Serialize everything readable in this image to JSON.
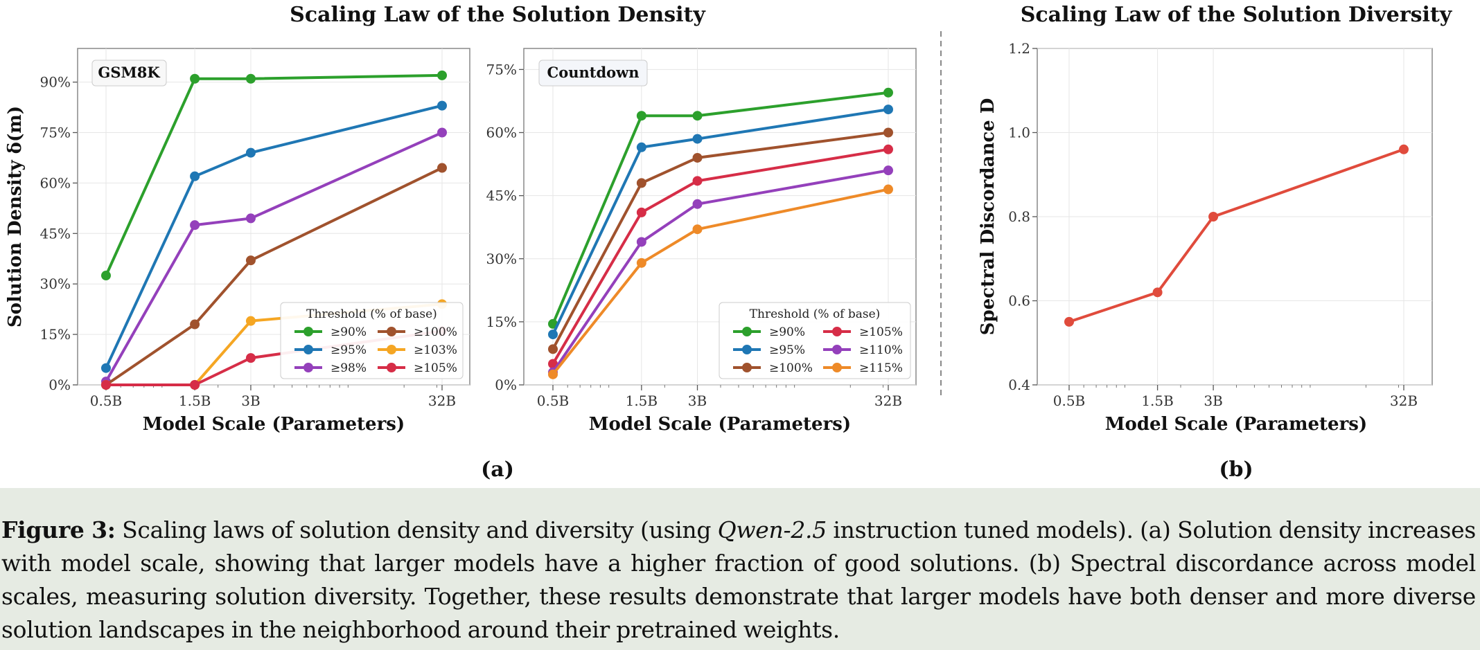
{
  "figure": {
    "title_a": "Scaling Law of the Solution Density",
    "title_b": "Scaling Law of the Solution Diversity",
    "label_a": "(a)",
    "label_b": "(b)"
  },
  "caption": {
    "label": "Figure 3:",
    "text_1": "Scaling laws of solution density and diversity (using ",
    "italic": "Qwen-2.5",
    "text_2": " instruction tuned models). (a) Solution density increases with model scale, showing that larger models have a higher fraction of good solutions. (b) Spectral discordance across model scales, measuring solution diversity. Together, these results demonstrate that larger models have both denser and more diverse solution landscapes in the neighborhood around their pretrained weights."
  },
  "colors": {
    "green": "#2ca02c",
    "blue": "#1f77b4",
    "purple": "#9440bb",
    "brown": "#a0522d",
    "orange": "#f5a623",
    "red": "#d62d47",
    "orange2": "#ee8a28",
    "diversity": "#e04b3c",
    "caption_bg": "#e6ebe3"
  },
  "chart_data": [
    {
      "type": "line",
      "badge": "GSM8K",
      "x": [
        "0.5B",
        "1.5B",
        "3B",
        "32B"
      ],
      "xscale": "log",
      "xlabel": "Model Scale (Parameters)",
      "ylabel": "Solution Density δ(m)",
      "ylim": [
        0,
        100
      ],
      "yticks": [
        "0%",
        "15%",
        "30%",
        "45%",
        "60%",
        "75%",
        "90%"
      ],
      "grid": true,
      "legend_title": "Threshold (% of base)",
      "legend_placement": "lower-right",
      "series": [
        {
          "name": "≥90%",
          "values": [
            32.5,
            91,
            91,
            92
          ],
          "color": "green"
        },
        {
          "name": "≥95%",
          "values": [
            5,
            62,
            69,
            83
          ],
          "color": "blue"
        },
        {
          "name": "≥98%",
          "values": [
            1,
            47.5,
            49.5,
            75
          ],
          "color": "purple"
        },
        {
          "name": "≥100%",
          "values": [
            0,
            18,
            37,
            64.5
          ],
          "color": "brown"
        },
        {
          "name": "≥103%",
          "values": [
            0,
            0,
            19,
            24
          ],
          "color": "orange"
        },
        {
          "name": "≥105%",
          "values": [
            0,
            0,
            8,
            16
          ],
          "color": "red"
        }
      ]
    },
    {
      "type": "line",
      "badge": "Countdown",
      "x": [
        "0.5B",
        "1.5B",
        "3B",
        "32B"
      ],
      "xscale": "log",
      "xlabel": "Model Scale (Parameters)",
      "ylim": [
        0,
        80
      ],
      "yticks": [
        "0%",
        "15%",
        "30%",
        "45%",
        "60%",
        "75%"
      ],
      "grid": true,
      "legend_title": "Threshold (% of base)",
      "legend_placement": "lower-right",
      "series": [
        {
          "name": "≥90%",
          "values": [
            14.5,
            64,
            64,
            69.5
          ],
          "color": "green"
        },
        {
          "name": "≥95%",
          "values": [
            12,
            56.5,
            58.5,
            65.5
          ],
          "color": "blue"
        },
        {
          "name": "≥100%",
          "values": [
            8.5,
            48,
            54,
            60
          ],
          "color": "brown"
        },
        {
          "name": "≥105%",
          "values": [
            5,
            41,
            48.5,
            56
          ],
          "color": "red"
        },
        {
          "name": "≥110%",
          "values": [
            3,
            34,
            43,
            51
          ],
          "color": "purple"
        },
        {
          "name": "≥115%",
          "values": [
            2.5,
            29,
            37,
            46.5
          ],
          "color": "orange2"
        }
      ]
    },
    {
      "type": "line",
      "x": [
        "0.5B",
        "1.5B",
        "3B",
        "32B"
      ],
      "xscale": "log",
      "xlabel": "Model Scale (Parameters)",
      "ylabel": "Spectral Discordance D",
      "ylim": [
        0.4,
        1.2
      ],
      "yticks": [
        "0.4",
        "0.6",
        "0.8",
        "1.0",
        "1.2"
      ],
      "grid": true,
      "series": [
        {
          "values": [
            0.55,
            0.62,
            0.8,
            0.96
          ],
          "color": "diversity"
        }
      ]
    }
  ]
}
